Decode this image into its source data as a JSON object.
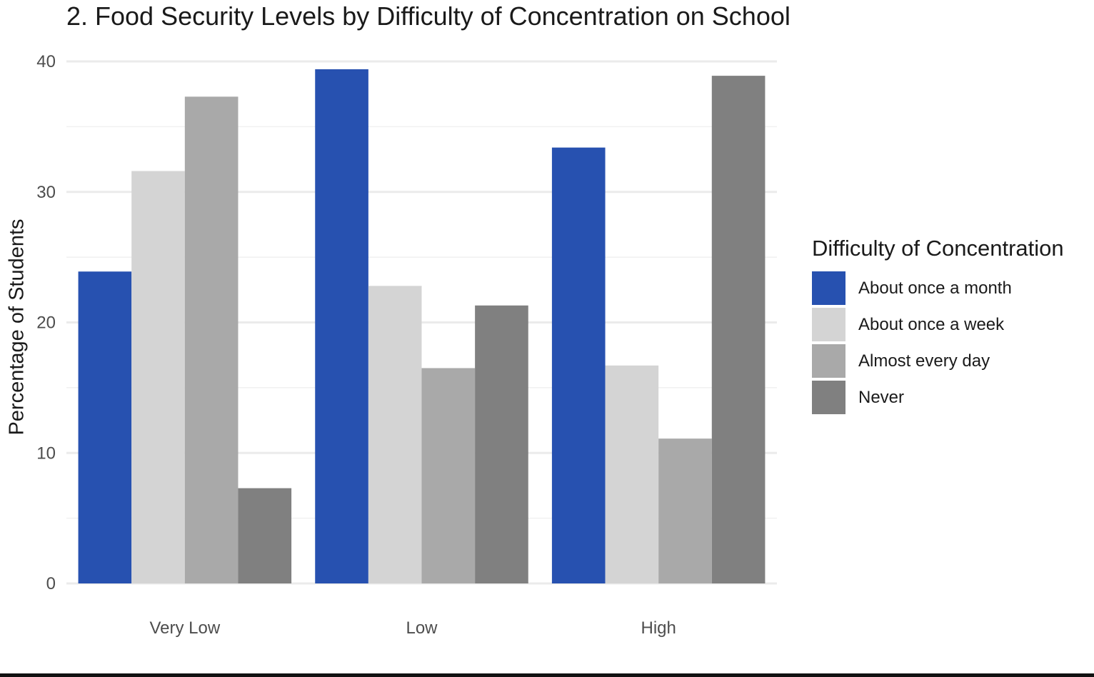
{
  "chart_data": {
    "type": "bar",
    "title": "2. Food Security Levels by Difficulty of Concentration on School",
    "xlabel": "",
    "ylabel": "Percentage of Students",
    "ylim": [
      0,
      40
    ],
    "yticks": [
      0,
      10,
      20,
      30,
      40
    ],
    "categories": [
      "Very Low",
      "Low",
      "High"
    ],
    "legend_title": "Difficulty of Concentration",
    "legend_position": "right",
    "grid": true,
    "series": [
      {
        "name": "About once a month",
        "color": "#2751b0",
        "values": [
          23.9,
          39.4,
          33.4
        ]
      },
      {
        "name": "About once a week",
        "color": "#d4d4d4",
        "values": [
          31.6,
          22.8,
          16.7
        ]
      },
      {
        "name": "Almost every day",
        "color": "#a9a9a9",
        "values": [
          37.3,
          16.5,
          11.1
        ]
      },
      {
        "name": "Never",
        "color": "#808080",
        "values": [
          7.3,
          21.3,
          38.9
        ]
      }
    ]
  }
}
